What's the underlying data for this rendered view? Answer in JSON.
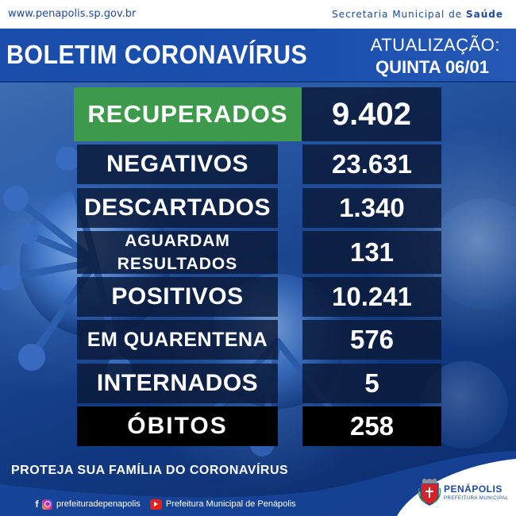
{
  "top": {
    "url": "www.penapolis.sp.gov.br",
    "secretaria_prefix": "Secretaria Municipal de ",
    "secretaria_name": "Saúde"
  },
  "header": {
    "title": "BOLETIM CORONAVÍRUS",
    "update_label": "ATUALIZAÇÃO:",
    "update_date": "QUINTA 06/01"
  },
  "stats": [
    {
      "label": "RECUPERADOS",
      "value": "9.402"
    },
    {
      "label": "NEGATIVOS",
      "value": "23.631"
    },
    {
      "label": "DESCARTADOS",
      "value": "1.340"
    },
    {
      "label": "AGUARDAM RESULTADOS",
      "value": "131"
    },
    {
      "label": "POSITIVOS",
      "value": "10.241"
    },
    {
      "label": "EM QUARENTENA",
      "value": "576"
    },
    {
      "label": "INTERNADOS",
      "value": "5"
    },
    {
      "label": "ÓBITOS",
      "value": "258"
    }
  ],
  "footer": {
    "slogan": "PROTEJA SUA FAMÍLIA DO CORONAVÍRUS",
    "social_handle": "prefeituradepenapolis",
    "youtube_channel": "Prefeitura Municipal de Penápolis",
    "logo_name": "PENÁPOLIS",
    "logo_sub": "PREFEITURA MUNICIPAL"
  },
  "colors": {
    "recovered_green": "#3c9a4a",
    "deaths_black": "#000000",
    "brand_blue": "#1a4dac"
  },
  "icons": [
    "facebook-icon",
    "instagram-icon",
    "youtube-icon",
    "coat-of-arms-logo",
    "coronavirus-illustration"
  ]
}
